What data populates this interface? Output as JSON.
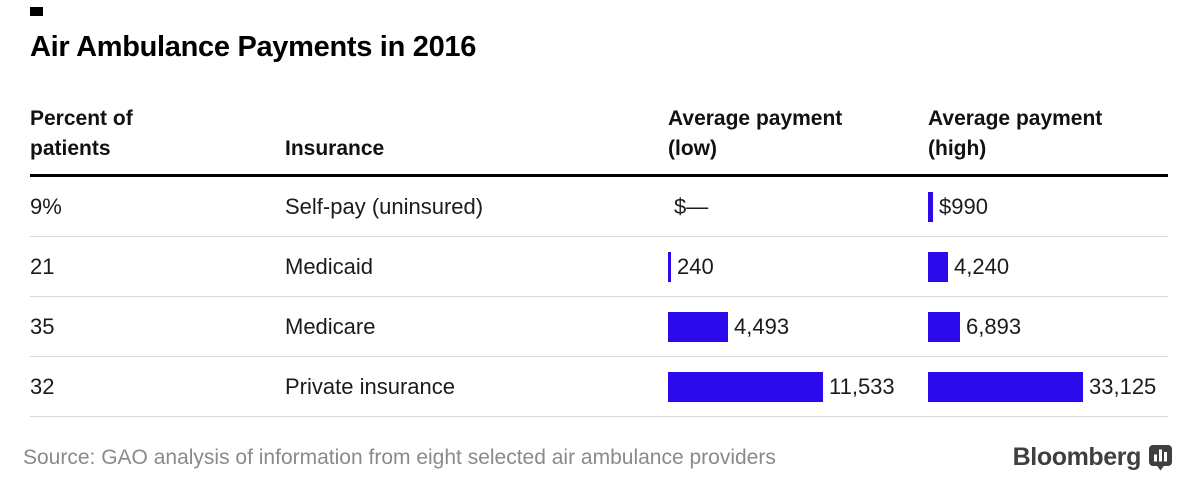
{
  "title": "Air Ambulance Payments in 2016",
  "source": "Source: GAO analysis of information from eight selected air ambulance providers",
  "logo": {
    "text": "Bloomberg",
    "icon": "bar-chart-bubble-icon"
  },
  "colors": {
    "bar_blue": "#2b0aeb",
    "header_rule_black": "#000000",
    "separator_gray": "#d9d9d9",
    "source_gray": "#8a8a8a",
    "logo_gray": "#3f3f3f"
  },
  "table": {
    "headers": [
      {
        "line1": "Percent of",
        "line2": "patients"
      },
      {
        "line1": "",
        "line2": "Insurance"
      },
      {
        "line1": "Average payment",
        "line2": "(low)"
      },
      {
        "line1": "Average payment",
        "line2": "(high)"
      }
    ],
    "rows": [
      {
        "percent": "9%",
        "insurance": "Self-pay (uninsured)",
        "low_label": "$—",
        "low_value": 0,
        "high_label": "$990",
        "high_value": 990
      },
      {
        "percent": "21",
        "insurance": "Medicaid",
        "low_label": "240",
        "low_value": 240,
        "high_label": "4,240",
        "high_value": 4240
      },
      {
        "percent": "35",
        "insurance": "Medicare",
        "low_label": "4,493",
        "low_value": 4493,
        "high_label": "6,893",
        "high_value": 6893
      },
      {
        "percent": "32",
        "insurance": "Private insurance",
        "low_label": "11,533",
        "low_value": 11533,
        "high_label": "33,125",
        "high_value": 33125
      }
    ]
  },
  "chart_data": {
    "type": "bar",
    "orientation": "horizontal",
    "title": "Air Ambulance Payments in 2016",
    "categories": [
      "Self-pay (uninsured)",
      "Medicaid",
      "Medicare",
      "Private insurance"
    ],
    "series": [
      {
        "name": "Percent of patients",
        "values": [
          9,
          21,
          35,
          32
        ],
        "unit": "%"
      },
      {
        "name": "Average payment (low)",
        "values": [
          0,
          240,
          4493,
          11533
        ],
        "unit": "USD"
      },
      {
        "name": "Average payment (high)",
        "values": [
          990,
          4240,
          6893,
          33125
        ],
        "unit": "USD"
      }
    ],
    "bar_color": "#2b0aeb",
    "layout": "table-with-inline-bars, each payment column scaled to its own maximum",
    "source": "Source: GAO analysis of information from eight selected air ambulance providers"
  }
}
